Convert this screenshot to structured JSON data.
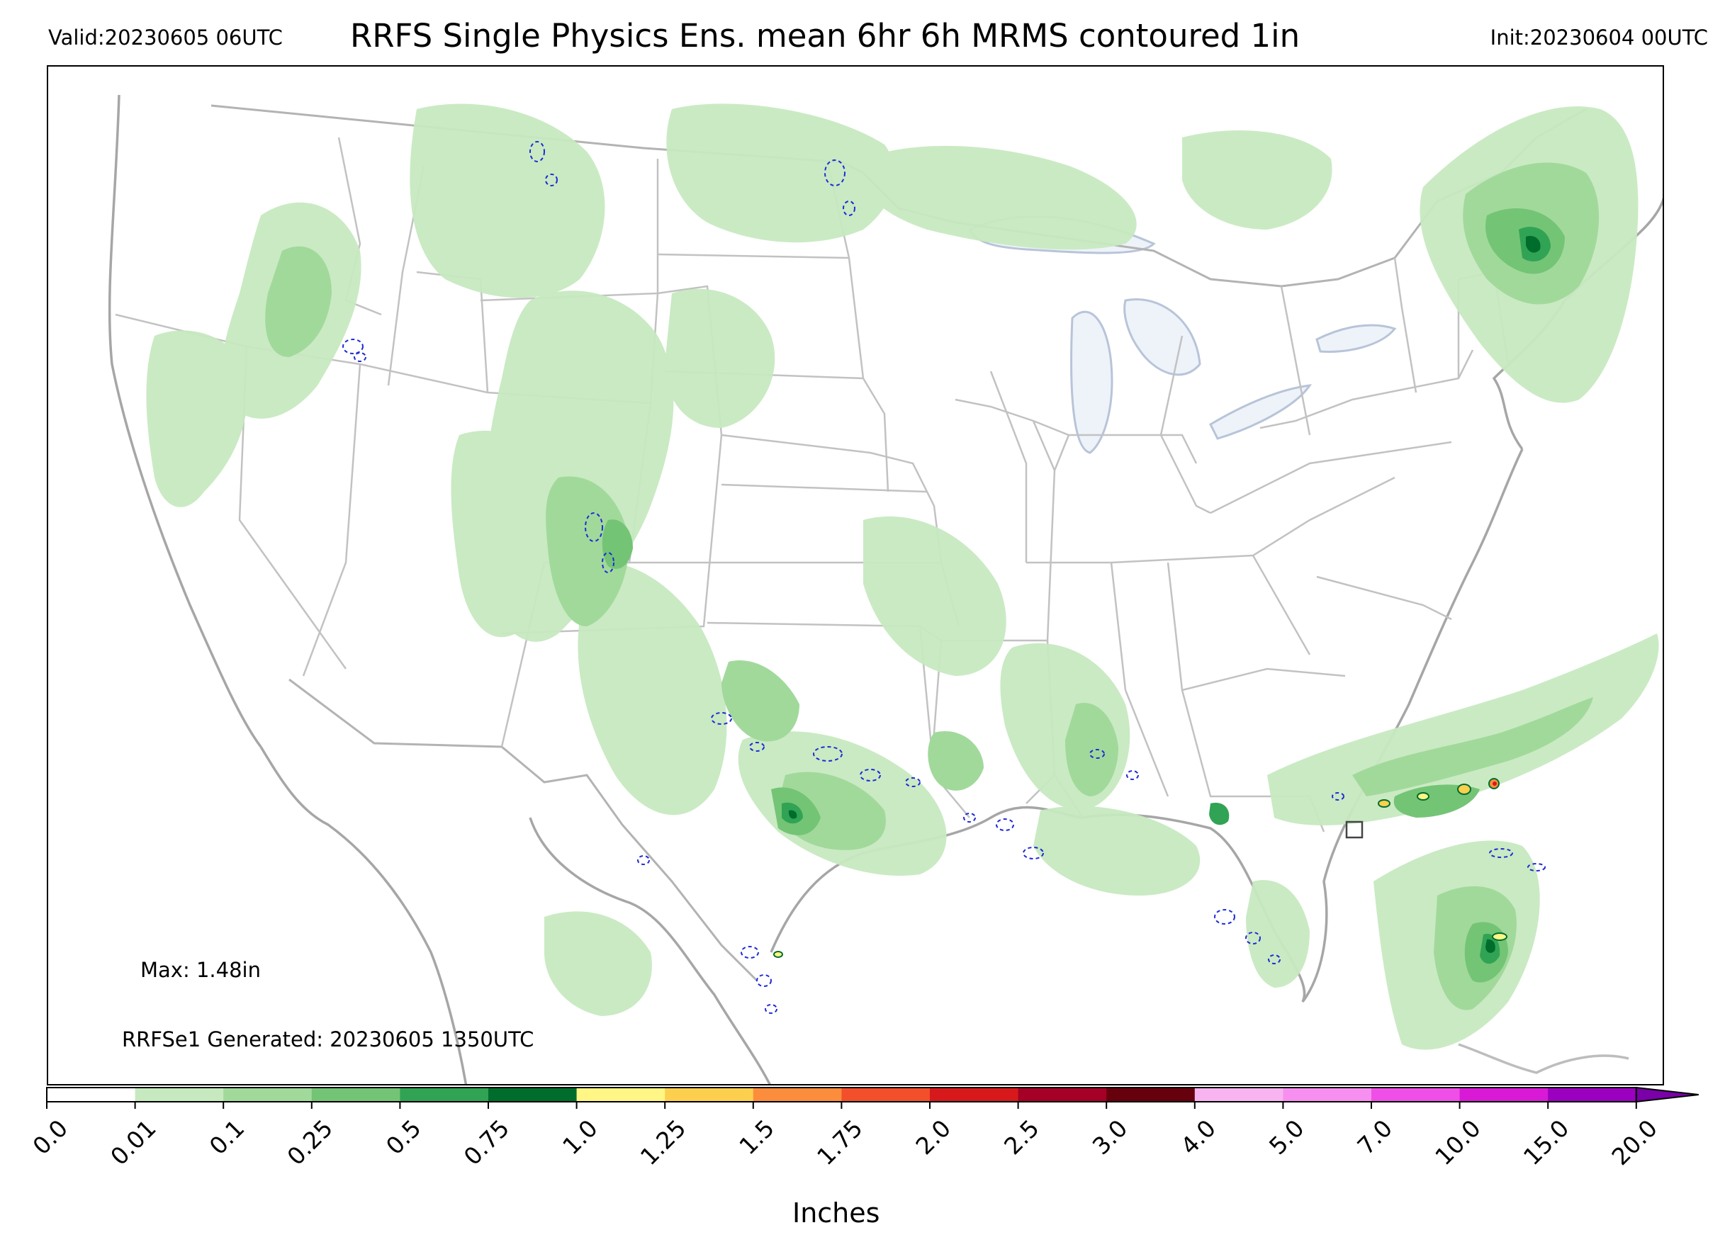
{
  "header": {
    "valid": "Valid:20230605 06UTC",
    "title": "RRFS Single Physics Ens. mean 6hr 6h MRMS contoured 1in",
    "init": "Init:20230604 00UTC"
  },
  "annotations": {
    "max": "Max: 1.48in",
    "generated": "RRFSe1 Generated: 20230605 1350UTC"
  },
  "colorbar": {
    "label": "Inches",
    "ticks": [
      "0.0",
      "0.01",
      "0.1",
      "0.25",
      "0.5",
      "0.75",
      "1.0",
      "1.25",
      "1.5",
      "1.75",
      "2.0",
      "2.5",
      "3.0",
      "4.0",
      "5.0",
      "7.0",
      "10.0",
      "15.0",
      "20.0"
    ],
    "colors": [
      "#ffffff",
      "#c7e9c0",
      "#a1d99b",
      "#74c476",
      "#31a354",
      "#006d2c",
      "#fff685",
      "#fdcf4f",
      "#fc8d3c",
      "#f34f2b",
      "#d7191c",
      "#a50026",
      "#67000d",
      "#f7b4f0",
      "#f78ff0",
      "#ef4fe6",
      "#d81ad6",
      "#9b00c0",
      "#7a00a8"
    ],
    "extend": "max"
  },
  "map": {
    "region": "CONUS",
    "land_color": "#ffffff",
    "lake_color": "#eef3fa",
    "border_color": "#b3b3b3",
    "coast_color": "#a6a6a6",
    "contour_color": "#1f2bd6"
  }
}
